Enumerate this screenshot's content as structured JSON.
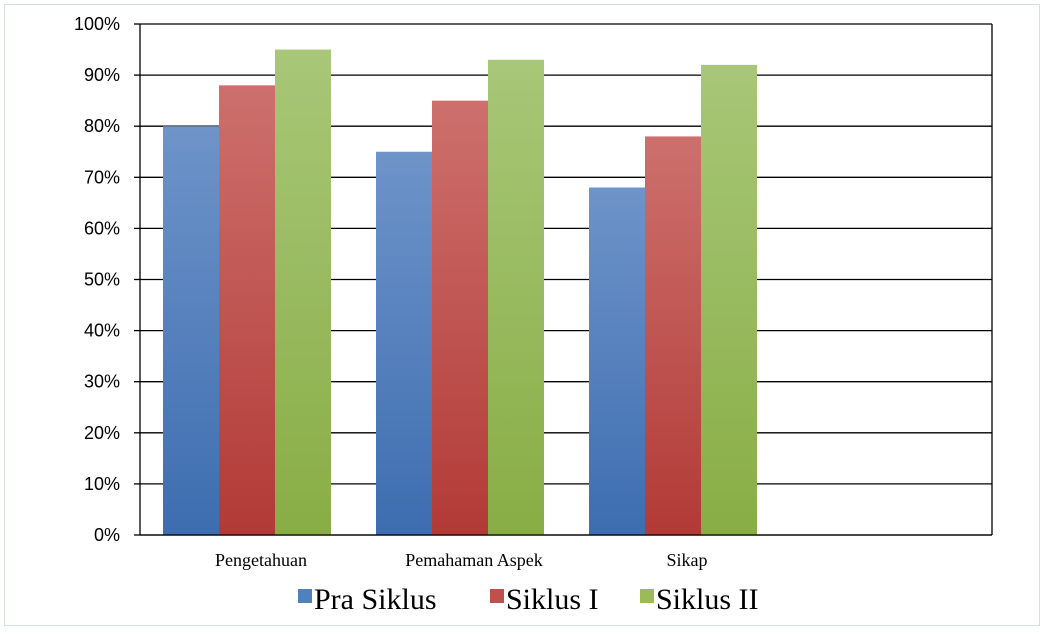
{
  "chart_data": {
    "type": "bar",
    "title": "",
    "xlabel": "",
    "ylabel": "",
    "categories": [
      "Pengetahuan",
      "Pemahaman Aspek",
      "Sikap",
      ""
    ],
    "series": [
      {
        "name": "Pra Siklus",
        "values": [
          0.8,
          0.75,
          0.68,
          null
        ],
        "color": "#4f81bd"
      },
      {
        "name": "Siklus I",
        "values": [
          0.88,
          0.85,
          0.78,
          null
        ],
        "color": "#c0504d"
      },
      {
        "name": "Siklus II",
        "values": [
          0.95,
          0.93,
          0.92,
          null
        ],
        "color": "#9bbb59"
      }
    ],
    "ylim": [
      0,
      1
    ],
    "yticks": [
      "0%",
      "10%",
      "20%",
      "30%",
      "40%",
      "50%",
      "60%",
      "70%",
      "80%",
      "90%",
      "100%"
    ],
    "grid": true,
    "legend": "bottom"
  }
}
